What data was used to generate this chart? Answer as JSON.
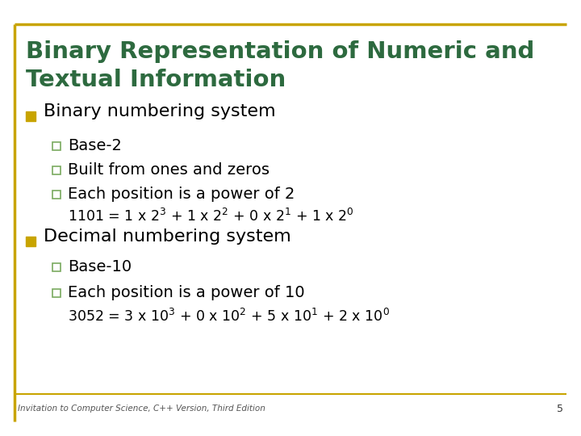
{
  "title_line1": "Binary Representation of Numeric and",
  "title_line2": "Textual Information",
  "title_color": "#2D6A3F",
  "background_color": "#FFFFFF",
  "border_color": "#C8A400",
  "bullet_color": "#C8A400",
  "sub_bullet_color": "#7AAA60",
  "text_color": "#000000",
  "formula_color": "#000000",
  "footer_text": "Invitation to Computer Science, C++ Version, Third Edition",
  "footer_page": "5",
  "bullet1": "Binary numbering system",
  "sub1a": "Base-2",
  "sub1b": "Built from ones and zeros",
  "sub1c": "Each position is a power of 2",
  "formula1": "1101 = 1 x 2$^{3}$ + 1 x 2$^{2}$ + 0 x 2$^{1}$ + 1 x 2$^{0}$",
  "bullet2": "Decimal numbering system",
  "sub2a": "Base-10",
  "sub2b": "Each position is a power of 10",
  "formula2": "3052 = 3 x 10$^{3}$ + 0 x 10$^{2}$ + 5 x 10$^{1}$ + 2 x 10$^{0}$"
}
